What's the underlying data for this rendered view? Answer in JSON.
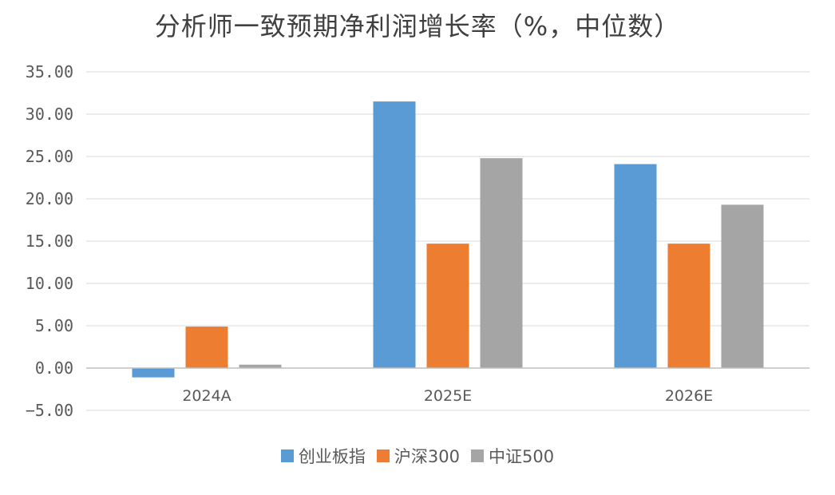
{
  "chart_data": {
    "type": "bar",
    "title": "分析师一致预期净利润增长率（%，中位数）",
    "categories": [
      "2024A",
      "2025E",
      "2026E"
    ],
    "series": [
      {
        "name": "创业板指",
        "color": "#5B9BD5",
        "values": [
          -1.1,
          31.5,
          24.1
        ]
      },
      {
        "name": "沪深300",
        "color": "#ED7D31",
        "values": [
          4.9,
          14.7,
          14.7
        ]
      },
      {
        "name": "中证500",
        "color": "#A5A5A5",
        "values": [
          0.4,
          24.8,
          19.3
        ]
      }
    ],
    "ylim": [
      -5,
      35
    ],
    "yticks": [
      "35.00",
      "30.00",
      "25.00",
      "20.00",
      "15.00",
      "10.00",
      "5.00",
      "0.00",
      "−5.00"
    ],
    "grid": true,
    "legend_position": "bottom",
    "xlabel": "",
    "ylabel": ""
  }
}
